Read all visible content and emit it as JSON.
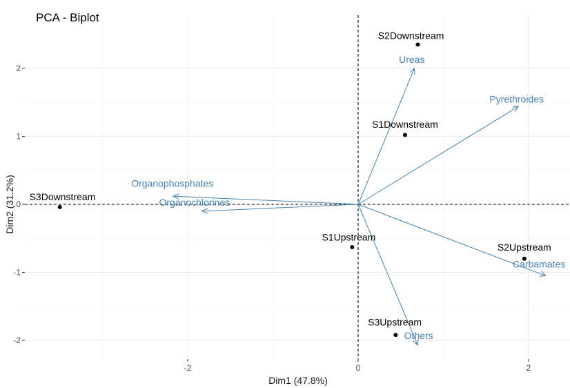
{
  "chart_data": {
    "type": "scatter",
    "title": "PCA - Biplot",
    "xlabel": "Dim1 (47.8%)",
    "ylabel": "Dim2 (31.2%)",
    "xlim": [
      -3.5,
      2.5
    ],
    "ylim": [
      -2.3,
      2.55
    ],
    "x_ticks": [
      -2,
      0,
      2
    ],
    "y_ticks": [
      -2,
      -1,
      0,
      1,
      2
    ],
    "x_tick_labels": [
      "-2",
      "0",
      "2"
    ],
    "y_tick_labels": [
      "-2",
      "-1",
      "0",
      "1",
      "2"
    ],
    "grid": true,
    "origin_lines": "dashed",
    "points": [
      {
        "label": "S1Downstream",
        "x": 0.55,
        "y": 1.02
      },
      {
        "label": "S2Downstream",
        "x": 0.7,
        "y": 2.35
      },
      {
        "label": "S3Downstream",
        "x": -3.5,
        "y": -0.04
      },
      {
        "label": "S1Upstream",
        "x": -0.07,
        "y": -0.63
      },
      {
        "label": "S2Upstream",
        "x": 1.95,
        "y": -0.8
      },
      {
        "label": "S3Upstream",
        "x": 0.44,
        "y": -1.92
      }
    ],
    "variables": [
      {
        "label": "Ureas",
        "x": 0.66,
        "y": 2.0
      },
      {
        "label": "Pyrethroides",
        "x": 1.88,
        "y": 1.44
      },
      {
        "label": "Organophosphates",
        "x": -2.17,
        "y": 0.12
      },
      {
        "label": "Organochlorines",
        "x": -1.83,
        "y": -0.1
      },
      {
        "label": "Carbamates",
        "x": 2.2,
        "y": -1.05
      },
      {
        "label": "Others",
        "x": 0.7,
        "y": -2.07
      }
    ],
    "colors": {
      "points": "#000000",
      "variables": "#4682b4",
      "variable_labels": "#4682b4"
    }
  }
}
